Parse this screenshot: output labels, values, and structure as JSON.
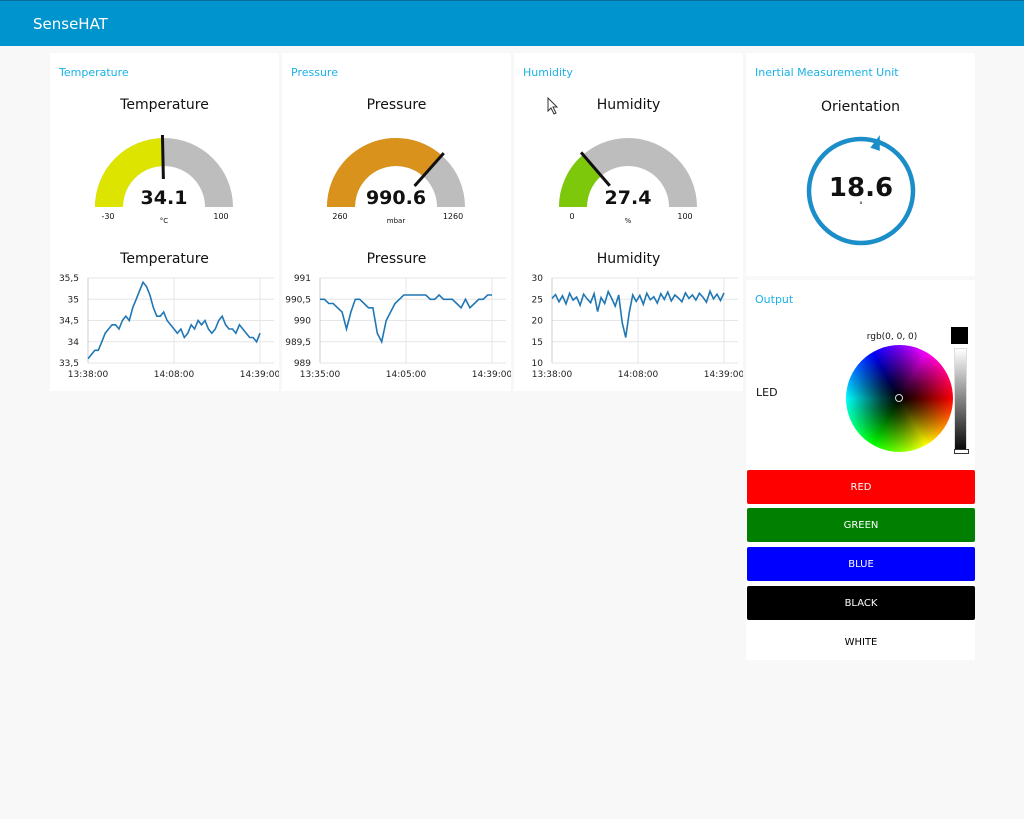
{
  "app": {
    "title": "SenseHAT"
  },
  "groups": {
    "temperature": "Temperature",
    "pressure": "Pressure",
    "humidity": "Humidity",
    "imu": "Inertial Measurement Unit",
    "output": "Output"
  },
  "gauges": [
    {
      "title": "Temperature",
      "value": 34.1,
      "display": "34.1",
      "min": -30,
      "max": 100,
      "min_label": "-30",
      "max_label": "100",
      "unit": "°C",
      "color": "#dde400"
    },
    {
      "title": "Pressure",
      "value": 990.6,
      "display": "990.6",
      "min": 260,
      "max": 1260,
      "min_label": "260",
      "max_label": "1260",
      "unit": "mbar",
      "color": "#d9921c"
    },
    {
      "title": "Humidity",
      "value": 27.4,
      "display": "27.4",
      "min": 0,
      "max": 100,
      "min_label": "0",
      "max_label": "100",
      "unit": "%",
      "color": "#7ec80b"
    }
  ],
  "compass": {
    "title": "Orientation",
    "value": 18.6,
    "display": "18.6",
    "unit": "°",
    "color": "#1b8ec9"
  },
  "chart_data": [
    {
      "type": "line",
      "title": "Temperature",
      "x_ticks": [
        "13:38:00",
        "14:08:00",
        "14:39:00"
      ],
      "y_ticks": [
        "35,5",
        "35",
        "34,5",
        "34",
        "33,5"
      ],
      "ylim": [
        33.5,
        35.5
      ],
      "grid": true,
      "series": [
        {
          "values": [
            33.6,
            33.7,
            33.8,
            33.8,
            34.0,
            34.2,
            34.3,
            34.4,
            34.4,
            34.3,
            34.5,
            34.6,
            34.5,
            34.8,
            35.0,
            35.2,
            35.4,
            35.3,
            35.1,
            34.8,
            34.6,
            34.6,
            34.7,
            34.5,
            34.4,
            34.3,
            34.2,
            34.3,
            34.1,
            34.2,
            34.4,
            34.3,
            34.5,
            34.4,
            34.5,
            34.3,
            34.2,
            34.3,
            34.5,
            34.6,
            34.4,
            34.3,
            34.3,
            34.2,
            34.4,
            34.3,
            34.2,
            34.1,
            34.1,
            34.0,
            34.2
          ]
        }
      ],
      "color": "#1f77b4"
    },
    {
      "type": "line",
      "title": "Pressure",
      "x_ticks": [
        "13:35:00",
        "14:05:00",
        "14:39:00"
      ],
      "y_ticks": [
        "991",
        "990,5",
        "990",
        "989,5",
        "989"
      ],
      "ylim": [
        989,
        991
      ],
      "grid": true,
      "series": [
        {
          "values": [
            990.5,
            990.5,
            990.4,
            990.4,
            990.3,
            990.2,
            989.8,
            990.2,
            990.5,
            990.5,
            990.4,
            990.3,
            990.3,
            989.7,
            989.5,
            990.0,
            990.2,
            990.4,
            990.5,
            990.6,
            990.6,
            990.6,
            990.6,
            990.6,
            990.6,
            990.5,
            990.5,
            990.6,
            990.5,
            990.5,
            990.5,
            990.4,
            990.3,
            990.5,
            990.3,
            990.4,
            990.5,
            990.5,
            990.6,
            990.6
          ]
        }
      ],
      "color": "#1f77b4"
    },
    {
      "type": "line",
      "title": "Humidity",
      "x_ticks": [
        "13:38:00",
        "14:08:00",
        "14:39:00"
      ],
      "y_ticks": [
        "30",
        "25",
        "20",
        "15",
        "10"
      ],
      "ylim": [
        10,
        30
      ],
      "grid": true,
      "series": [
        {
          "values": [
            25.2,
            26.1,
            24.4,
            25.8,
            23.9,
            26.4,
            24.8,
            25.5,
            23.6,
            26.2,
            25.1,
            24.2,
            26.3,
            22.1,
            25.4,
            24.0,
            26.8,
            25.2,
            23.4,
            26.0,
            19.5,
            16.0,
            21.8,
            26.0,
            24.5,
            25.9,
            23.8,
            26.4,
            24.9,
            25.6,
            24.1,
            26.3,
            25.0,
            26.7,
            24.6,
            26.0,
            25.3,
            24.4,
            26.5,
            25.2,
            26.0,
            24.8,
            26.4,
            25.5,
            24.3,
            26.9,
            25.1,
            26.2,
            24.7,
            26.5
          ]
        }
      ],
      "color": "#1f77b4"
    }
  ],
  "output": {
    "led_label": "LED",
    "rgb_text": "rgb(0, 0, 0)",
    "buttons": [
      {
        "name": "red-button",
        "label": "RED",
        "bg": "#ff0000",
        "fg": "#ffffff"
      },
      {
        "name": "green-button",
        "label": "GREEN",
        "bg": "#007f00",
        "fg": "#ffffff"
      },
      {
        "name": "blue-button",
        "label": "BLUE",
        "bg": "#0000ff",
        "fg": "#ffffff"
      },
      {
        "name": "black-button",
        "label": "BLACK",
        "bg": "#000000",
        "fg": "#ffffff"
      },
      {
        "name": "white-button",
        "label": "WHITE",
        "bg": "#ffffff",
        "fg": "#000000"
      }
    ]
  }
}
